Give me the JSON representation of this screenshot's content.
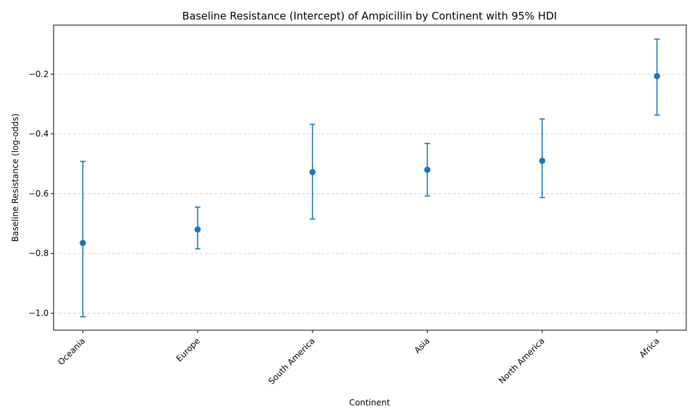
{
  "chart_data": {
    "type": "errorbar",
    "title": "Baseline Resistance (Intercept) of Ampicillin by Continent with 95% HDI",
    "xlabel": "Continent",
    "ylabel": "Baseline Resistance (log-odds)",
    "categories": [
      "Oceania",
      "Europe",
      "South America",
      "Asia",
      "North America",
      "Africa"
    ],
    "series": [
      {
        "values": [
          -0.765,
          -0.72,
          -0.528,
          -0.52,
          -0.49,
          -0.207
        ],
        "hdi_low": [
          -1.012,
          -0.785,
          -0.685,
          -0.608,
          -0.613,
          -0.337
        ],
        "hdi_high": [
          -0.492,
          -0.645,
          -0.368,
          -0.432,
          -0.35,
          -0.083
        ]
      }
    ],
    "ylim": [
      -1.057,
      -0.036
    ],
    "yticks": [
      -1.0,
      -0.8,
      -0.6,
      -0.4,
      -0.2
    ],
    "ytick_labels": [
      "−1.0",
      "−0.8",
      "−0.6",
      "−0.4",
      "−0.2"
    ],
    "grid": "y-dashed",
    "color": "#1f77b4",
    "grid_color": "#c8c8c8"
  }
}
